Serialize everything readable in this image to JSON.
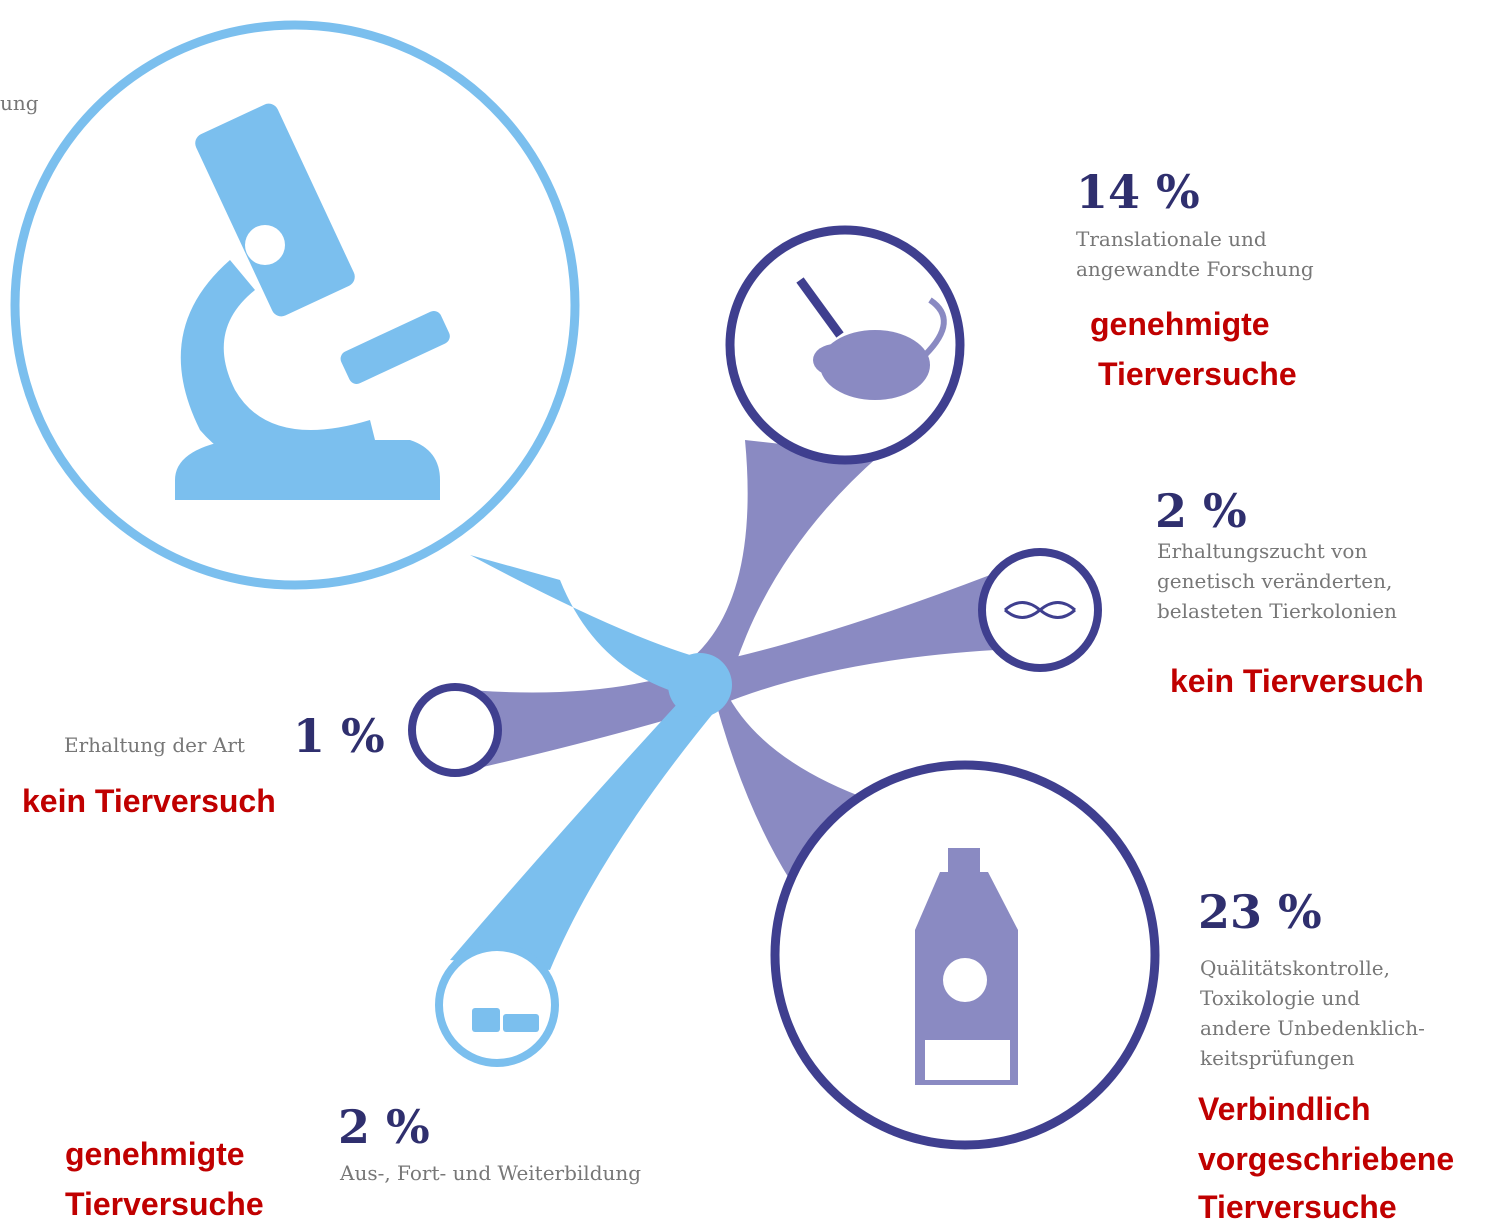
{
  "top_fragment": "ung",
  "nodes": [
    {
      "percent": "14 %",
      "description": [
        "Translationale und",
        "angewandte Forschung"
      ],
      "note": [
        "genehmigte",
        "Tierversuche"
      ]
    },
    {
      "percent": "2 %",
      "description": [
        "Erhaltungszucht von",
        "genetisch veränderten,",
        "belasteten Tierkolonien"
      ],
      "note": [
        "kein Tierversuch"
      ]
    },
    {
      "percent": "1 %",
      "description": [
        "Erhaltung der Art"
      ],
      "note": [
        "kein Tierversuch"
      ]
    },
    {
      "percent": "23 %",
      "description": [
        "Quälitätskontrolle,",
        "Toxikologie und",
        "andere Unbedenklich-",
        "keitsprüfungen"
      ],
      "note": [
        "Verbindlich",
        "vorgeschriebene",
        "Tierversuche"
      ]
    },
    {
      "percent": "2 %",
      "description": [
        "Aus-, Fort- und Weiterbildung"
      ],
      "note": [
        "genehmigte",
        "Tierversuche"
      ]
    }
  ]
}
